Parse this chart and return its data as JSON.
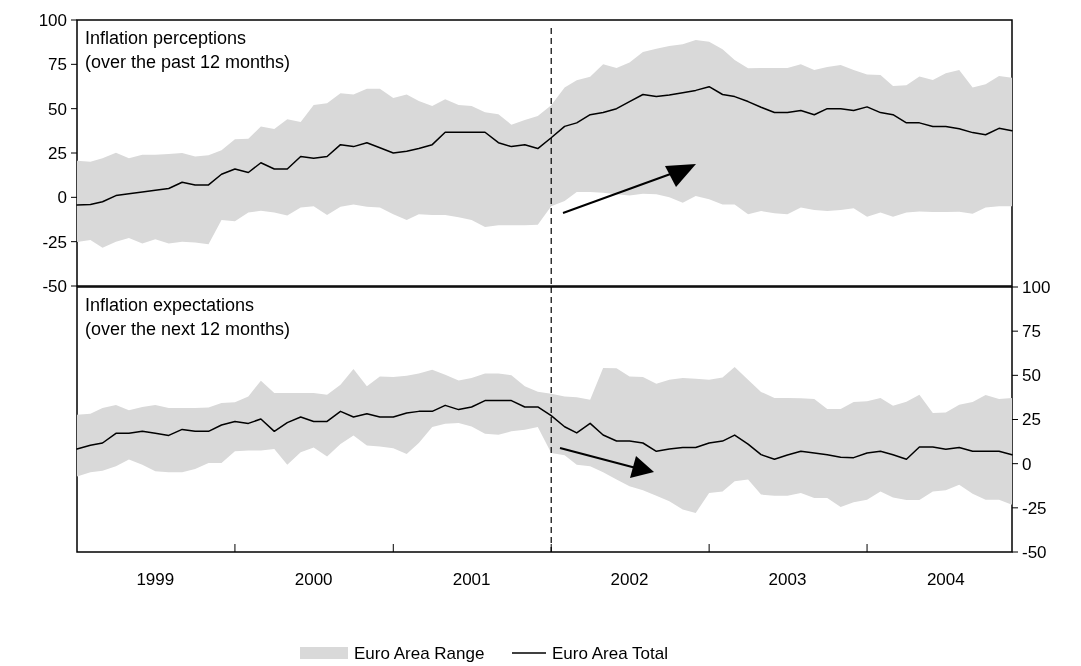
{
  "chart_data": [
    {
      "type": "line",
      "title": "Inflation perceptions",
      "subtitle": "(over the past 12 months)",
      "x": [
        "1999-01",
        "1999-02",
        "1999-03",
        "1999-04",
        "1999-05",
        "1999-06",
        "1999-07",
        "1999-08",
        "1999-09",
        "1999-10",
        "1999-11",
        "1999-12",
        "2000-01",
        "2000-02",
        "2000-03",
        "2000-04",
        "2000-05",
        "2000-06",
        "2000-07",
        "2000-08",
        "2000-09",
        "2000-10",
        "2000-11",
        "2000-12",
        "2001-01",
        "2001-02",
        "2001-03",
        "2001-04",
        "2001-05",
        "2001-06",
        "2001-07",
        "2001-08",
        "2001-09",
        "2001-10",
        "2001-11",
        "2001-12",
        "2002-01",
        "2002-02",
        "2002-03",
        "2002-04",
        "2002-05",
        "2002-06",
        "2002-07",
        "2002-08",
        "2002-09",
        "2002-10",
        "2002-11",
        "2002-12",
        "2003-01",
        "2003-02",
        "2003-03",
        "2003-04",
        "2003-05",
        "2003-06",
        "2003-07",
        "2003-08",
        "2003-09",
        "2003-10",
        "2003-11",
        "2003-12",
        "2004-01",
        "2004-02",
        "2004-03",
        "2004-04",
        "2004-05",
        "2004-06",
        "2004-07",
        "2004-08",
        "2004-09",
        "2004-10",
        "2004-11",
        "2004-12"
      ],
      "series": [
        {
          "color": "#000000",
          "lower": [
            -25.2,
            -24,
            -28.4,
            -25,
            -23,
            -26,
            -23.7,
            -26,
            -25,
            -25.5,
            -26.5,
            -12.8,
            -13.5,
            -8.6,
            -7.5,
            -8.6,
            -10.3,
            -5.8,
            -5,
            -10,
            -5.3,
            -4.1,
            -5.3,
            -5.8,
            -9.6,
            -12.8,
            -9.6,
            -10,
            -10,
            -11.3,
            -12.8,
            -16.7,
            -15.8,
            -15.8,
            -15.8,
            -15.4,
            -5,
            -2,
            3,
            3,
            2.6,
            1.7,
            1,
            2,
            1.7,
            0,
            -3,
            0.7,
            -1.1,
            -4,
            -4,
            -9.6,
            -7.7,
            -9,
            -9.6,
            -5.8,
            -7.1,
            -7.7,
            -7.1,
            -6.2,
            -10.9,
            -8.6,
            -10.9,
            -8.6,
            -8,
            -8.3,
            -8.3,
            -8.1,
            -9.2,
            -5.8,
            -5,
            -5
          ],
          "upper": [
            20.7,
            20,
            22,
            25.2,
            22,
            24,
            24,
            24.4,
            25,
            23,
            23.8,
            26.6,
            32.7,
            33,
            39.9,
            38.6,
            44,
            42.5,
            52,
            53,
            58.7,
            58,
            61.3,
            61.3,
            56,
            58,
            54.3,
            51.5,
            55.3,
            52,
            51.5,
            48,
            46.8,
            41,
            43.6,
            45.9,
            51.9,
            61.9,
            66,
            68,
            75,
            73,
            76,
            82,
            83.8,
            85.3,
            86.3,
            88.7,
            87.8,
            83.5,
            77.4,
            72.8,
            73,
            73,
            73,
            75,
            71.8,
            73.5,
            74.6,
            71.8,
            69.2,
            69,
            62.8,
            63.2,
            68.2,
            66.2,
            70,
            71.8,
            61.9,
            63.7,
            68.4,
            67.5
          ],
          "values": [
            -4.3,
            -4,
            -2.5,
            1,
            2,
            3,
            4,
            5,
            8.5,
            7,
            7,
            13,
            16,
            14,
            19.5,
            16,
            16,
            23,
            22,
            23,
            29.7,
            28.6,
            30.8,
            28,
            25,
            26,
            27.5,
            29.7,
            36.7,
            36.7,
            36.7,
            36.7,
            30.8,
            28.6,
            29.7,
            27.5,
            33.6,
            40,
            42,
            46.6,
            47.8,
            50,
            54,
            58,
            56.8,
            57.7,
            59,
            60.3,
            62.4,
            58,
            56.8,
            54,
            50.8,
            47.8,
            47.8,
            49,
            46.6,
            50,
            50,
            49,
            51,
            47.8,
            46.6,
            42,
            42,
            40,
            40,
            38.7,
            36.5,
            35.3,
            38.9,
            37.6
          ]
        }
      ],
      "xlim": [
        "1999-01",
        "2004-12"
      ],
      "ylim": [
        -50,
        100
      ],
      "yticks": [
        -50,
        -25,
        0,
        25,
        50,
        75,
        100
      ],
      "tick_labels": "y",
      "ref_lines": [
        {
          "axis": "x",
          "value": "2002-01",
          "line_style": "dashed",
          "color": "#000000"
        }
      ]
    },
    {
      "type": "line",
      "title": "Inflation expectations",
      "subtitle": "(over the next 12 months)",
      "x": [
        "1999-01",
        "1999-02",
        "1999-03",
        "1999-04",
        "1999-05",
        "1999-06",
        "1999-07",
        "1999-08",
        "1999-09",
        "1999-10",
        "1999-11",
        "1999-12",
        "2000-01",
        "2000-02",
        "2000-03",
        "2000-04",
        "2000-05",
        "2000-06",
        "2000-07",
        "2000-08",
        "2000-09",
        "2000-10",
        "2000-11",
        "2000-12",
        "2001-01",
        "2001-02",
        "2001-03",
        "2001-04",
        "2001-05",
        "2001-06",
        "2001-07",
        "2001-08",
        "2001-09",
        "2001-10",
        "2001-11",
        "2001-12",
        "2002-01",
        "2002-02",
        "2002-03",
        "2002-04",
        "2002-05",
        "2002-06",
        "2002-07",
        "2002-08",
        "2002-09",
        "2002-10",
        "2002-11",
        "2002-12",
        "2003-01",
        "2003-02",
        "2003-03",
        "2003-04",
        "2003-05",
        "2003-06",
        "2003-07",
        "2003-08",
        "2003-09",
        "2003-10",
        "2003-11",
        "2003-12",
        "2004-01",
        "2004-02",
        "2004-03",
        "2004-04",
        "2004-05",
        "2004-06",
        "2004-07",
        "2004-08",
        "2004-09",
        "2004-10",
        "2004-11",
        "2004-12"
      ],
      "series": [
        {
          "name": "Euro Area Total",
          "axis": "y2",
          "color": "#000000",
          "lower": [
            -7.2,
            -4.9,
            -4,
            -1.5,
            2.3,
            -0.6,
            -4.3,
            -4.9,
            -4.9,
            -3,
            0.4,
            0.4,
            7,
            7.5,
            7.5,
            8.3,
            -0.6,
            6.4,
            9.2,
            4.1,
            11.1,
            16,
            10.3,
            9.7,
            8.7,
            5.5,
            11.7,
            20.8,
            22.6,
            23,
            21.1,
            17,
            16.4,
            18.3,
            19.2,
            20.8,
            6,
            4.7,
            -0.6,
            -1.5,
            -4.9,
            -9,
            -12.8,
            -15.1,
            -18.1,
            -21.3,
            -26,
            -27.9,
            -16.6,
            -15.8,
            -10,
            -9,
            -17.5,
            -18.1,
            -18.1,
            -16.6,
            -19.4,
            -19.4,
            -24.5,
            -21.9,
            -20.4,
            -15.8,
            -19.1,
            -20.6,
            -20.6,
            -15.8,
            -15.1,
            -11.9,
            -17,
            -20.4,
            -20.4,
            -23.2
          ],
          "upper": [
            27.7,
            28.3,
            31.5,
            33.2,
            30.2,
            32.1,
            33.2,
            31.5,
            31.5,
            31.5,
            31.8,
            34.3,
            34.8,
            38,
            47,
            40,
            40,
            40,
            40,
            39,
            44.7,
            53.6,
            43.8,
            49.4,
            49,
            49.8,
            51,
            53.2,
            50.4,
            47.1,
            48.5,
            51,
            51,
            50.1,
            43.8,
            40.7,
            39.6,
            38,
            37.6,
            36.2,
            54.2,
            54,
            49.4,
            49,
            45.3,
            47.5,
            48.5,
            48,
            47.5,
            48.8,
            54.7,
            47.5,
            40.6,
            37.2,
            37.2,
            37,
            36.6,
            31,
            31,
            34.9,
            35.3,
            37.2,
            32.8,
            35,
            39,
            28.7,
            29,
            33.4,
            34.9,
            38.9,
            36.6,
            37.2
          ],
          "values": [
            8.3,
            10.4,
            11.7,
            17.2,
            17.2,
            18.3,
            17.2,
            16,
            19.4,
            18.3,
            18.3,
            21.9,
            23.9,
            22.8,
            25.3,
            18.3,
            23.2,
            26.4,
            23.9,
            23.9,
            29.6,
            26.4,
            28.3,
            26.4,
            26.4,
            28.7,
            29.6,
            29.6,
            33,
            30.6,
            32.1,
            35.7,
            35.7,
            35.7,
            32.1,
            32.1,
            27.2,
            20.9,
            17.4,
            22.8,
            16.2,
            12.8,
            12.8,
            11.7,
            7,
            8.3,
            9.2,
            9.2,
            11.7,
            12.8,
            16.2,
            11.1,
            5.1,
            2.5,
            4.9,
            7,
            6,
            5,
            3.6,
            3.4,
            6,
            7,
            5,
            2.5,
            9.4,
            9.4,
            8.1,
            9.2,
            7,
            7,
            7,
            5
          ]
        }
      ],
      "xlim": [
        "1999-01",
        "2004-12"
      ],
      "xticks": [
        {
          "value": "1999-07",
          "label": "1999"
        },
        {
          "value": "2000-01",
          "label": null
        },
        {
          "value": "2000-07",
          "label": "2000"
        },
        {
          "value": "2001-01",
          "label": null
        },
        {
          "value": "2001-07",
          "label": "2001"
        },
        {
          "value": "2002-01",
          "label": null
        },
        {
          "value": "2002-07",
          "label": "2002"
        },
        {
          "value": "2003-01",
          "label": null
        },
        {
          "value": "2003-07",
          "label": "2003"
        },
        {
          "value": "2004-01",
          "label": null
        },
        {
          "value": "2004-07",
          "label": "2004"
        }
      ],
      "y2lim": [
        -50,
        100
      ],
      "y2ticks": [
        -50,
        -25,
        0,
        25,
        50,
        75,
        100
      ],
      "legend": "bottom",
      "annotations": [
        "Euro Area Range"
      ],
      "ref_lines": [
        {
          "axis": "x",
          "value": "2002-01",
          "line_style": "dashed",
          "color": "#000000"
        }
      ]
    }
  ]
}
